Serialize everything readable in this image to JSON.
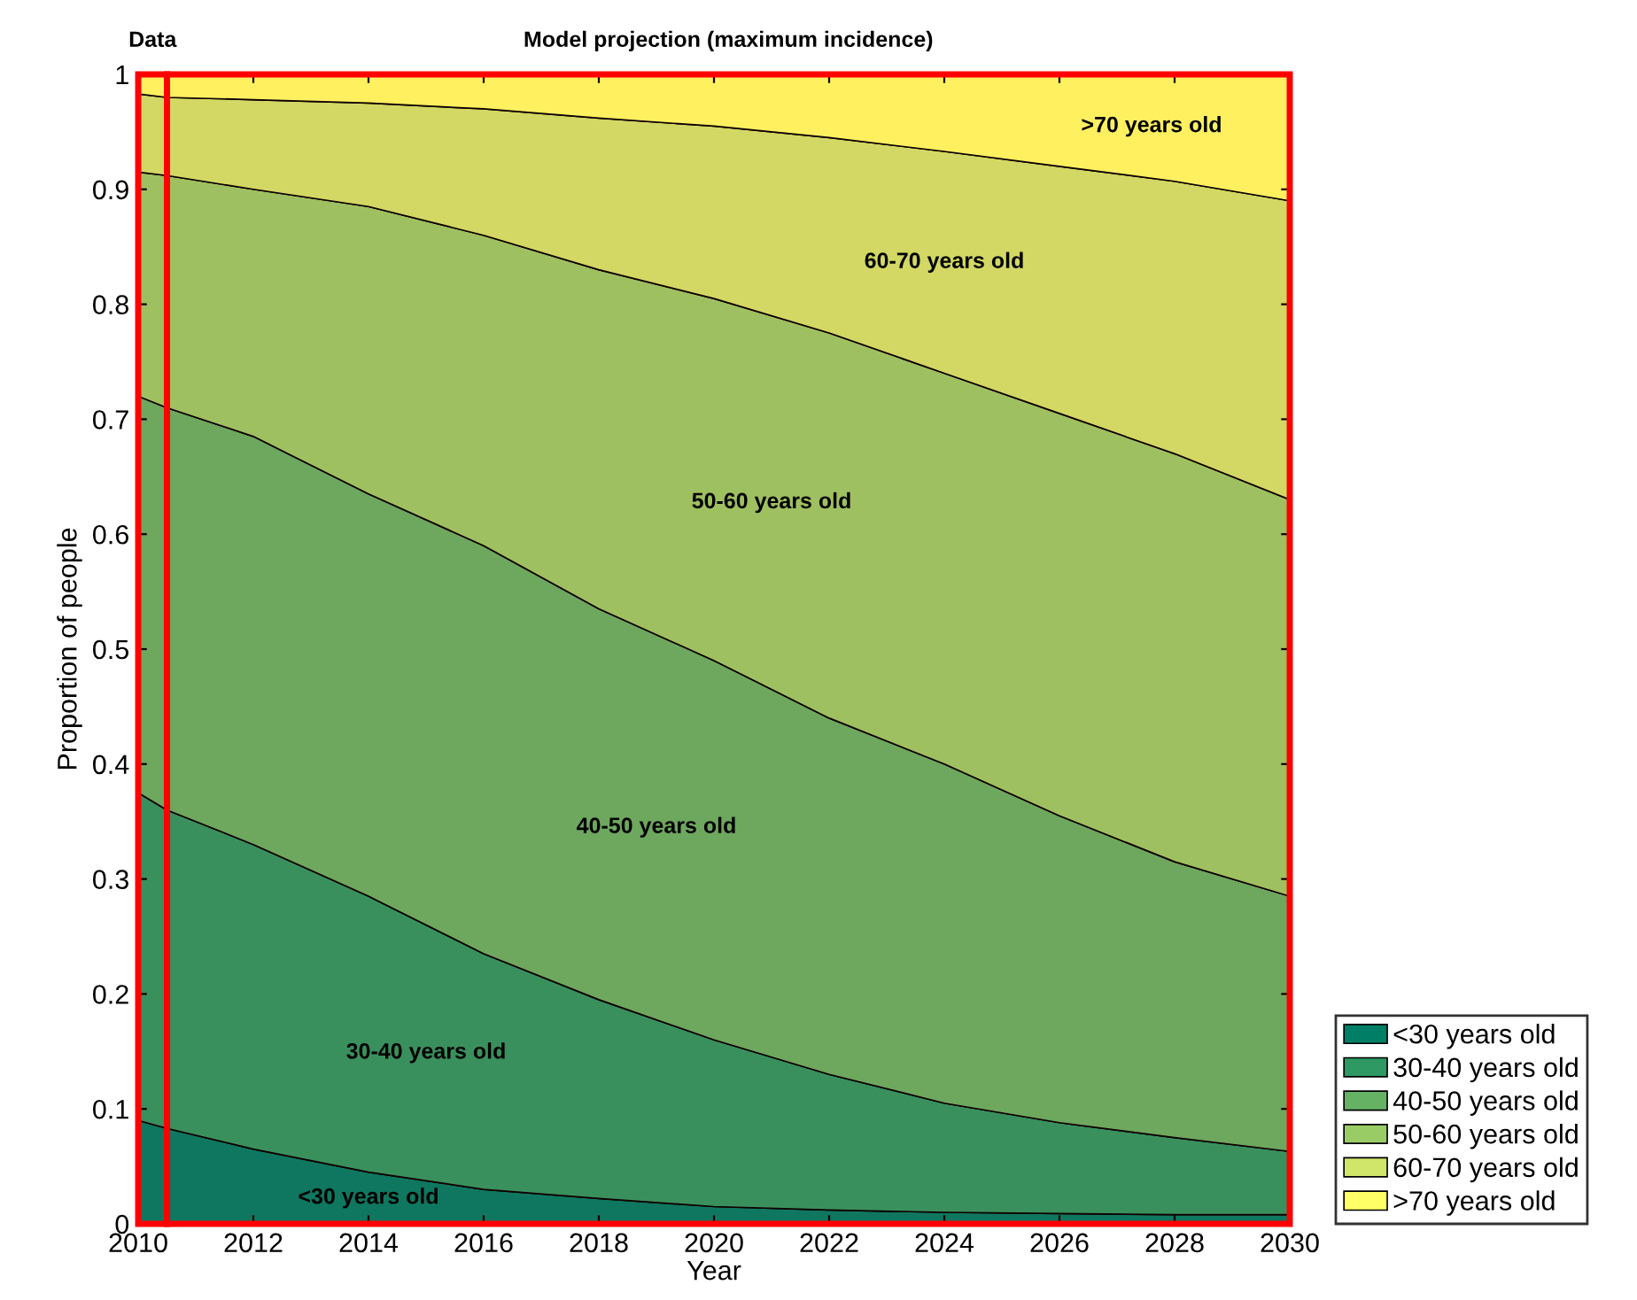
{
  "chart_data": {
    "type": "area",
    "stacked": true,
    "xlabel": "Year",
    "ylabel": "Proportion of people",
    "x": [
      2010,
      2010.5,
      2012,
      2014,
      2016,
      2018,
      2020,
      2022,
      2024,
      2026,
      2028,
      2030
    ],
    "series": [
      {
        "name": "<30 years old",
        "color": "#007f66",
        "values": [
          0.09,
          0.083,
          0.065,
          0.045,
          0.03,
          0.022,
          0.015,
          0.012,
          0.01,
          0.009,
          0.008,
          0.008
        ]
      },
      {
        "name": "30-40 years old",
        "color": "#2e9963",
        "values": [
          0.285,
          0.277,
          0.265,
          0.24,
          0.205,
          0.173,
          0.145,
          0.118,
          0.095,
          0.079,
          0.067,
          0.055
        ]
      },
      {
        "name": "40-50 years old",
        "color": "#65b264",
        "values": [
          0.345,
          0.35,
          0.355,
          0.35,
          0.355,
          0.34,
          0.33,
          0.31,
          0.295,
          0.267,
          0.24,
          0.222
        ]
      },
      {
        "name": "50-60 years old",
        "color": "#9acc66",
        "values": [
          0.195,
          0.202,
          0.215,
          0.25,
          0.27,
          0.295,
          0.315,
          0.335,
          0.34,
          0.35,
          0.355,
          0.345
        ]
      },
      {
        "name": "60-70 years old",
        "color": "#d0e66a",
        "values": [
          0.068,
          0.068,
          0.078,
          0.09,
          0.11,
          0.132,
          0.15,
          0.17,
          0.193,
          0.215,
          0.237,
          0.26
        ]
      },
      {
        "name": ">70 years old",
        "color": "#ffff66",
        "values": [
          0.017,
          0.02,
          0.022,
          0.025,
          0.03,
          0.038,
          0.045,
          0.055,
          0.067,
          0.08,
          0.093,
          0.11
        ]
      }
    ],
    "bands": [
      {
        "axis": "x",
        "from": 2010,
        "to": 2010.5,
        "label": "Data",
        "color": "#ff0000"
      },
      {
        "axis": "x",
        "from": 2010.5,
        "to": 2030,
        "label": "Model projection (maximum incidence)",
        "color": "#ff0000"
      }
    ],
    "annotations": [
      "<30 years old",
      "30-40 years old",
      "40-50 years old",
      "50-60 years old",
      "60-70 years old",
      ">70 years old"
    ],
    "xlim": [
      2010,
      2030
    ],
    "ylim": [
      0,
      1
    ],
    "xticks": [
      2010,
      2012,
      2014,
      2016,
      2018,
      2020,
      2022,
      2024,
      2026,
      2028,
      2030
    ],
    "yticks": [
      0,
      0.1,
      0.2,
      0.3,
      0.4,
      0.5,
      0.6,
      0.7,
      0.8,
      0.9,
      1
    ],
    "grid": false,
    "legend": "right"
  }
}
